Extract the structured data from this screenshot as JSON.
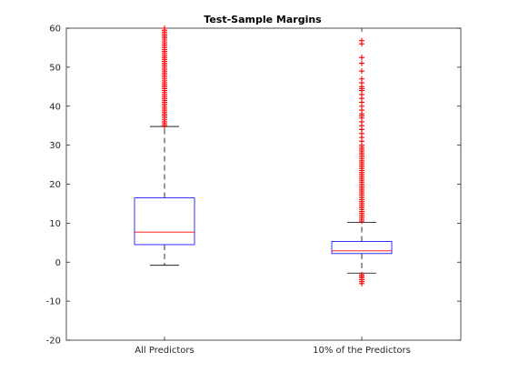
{
  "chart_data": {
    "type": "box",
    "title": "Test-Sample Margins",
    "xlabel": "",
    "ylabel": "",
    "ylim": [
      -20,
      60
    ],
    "yticks": [
      -20,
      -10,
      0,
      10,
      20,
      30,
      40,
      50,
      60
    ],
    "grid": false,
    "categories": [
      "All Predictors",
      "10% of the Predictors"
    ],
    "boxes": [
      {
        "category": "All Predictors",
        "whisker_low": -0.8,
        "q1": 4.5,
        "median": 7.7,
        "q3": 16.5,
        "whisker_high": 34.8,
        "outliers_low": [],
        "outliers_high": [
          35,
          35.5,
          36,
          36.5,
          37,
          37.5,
          38,
          38.5,
          39,
          39.5,
          40,
          40.5,
          41,
          41.5,
          42,
          42.5,
          43,
          43.5,
          44,
          44.5,
          45,
          45.5,
          46,
          46.5,
          47,
          47.5,
          48,
          48.5,
          49,
          49.5,
          50,
          50.5,
          51,
          51.5,
          52,
          52.5,
          53,
          53.5,
          54,
          54.5,
          55,
          55.5,
          56,
          56.5,
          57,
          57.5,
          58,
          58.5,
          59,
          59.5,
          60
        ]
      },
      {
        "category": "10% of the Predictors",
        "whisker_low": -2.8,
        "q1": 2.2,
        "median": 2.9,
        "q3": 5.3,
        "whisker_high": 10.2,
        "outliers_low": [
          -3.2,
          -3.6,
          -4.0,
          -4.5,
          -5.0,
          -5.5
        ],
        "outliers_high": [
          10.5,
          11,
          11.5,
          12,
          12.5,
          13,
          13.5,
          14,
          14.5,
          15,
          15.5,
          16,
          16.5,
          17,
          17.5,
          18,
          18.5,
          19,
          19.5,
          20,
          20.5,
          21,
          21.5,
          22,
          22.5,
          23,
          23.5,
          24,
          24.5,
          25,
          25.5,
          26,
          26.5,
          27,
          27.5,
          28,
          28.5,
          29,
          29.5,
          30,
          31,
          32,
          33,
          34,
          35,
          36,
          37,
          37.5,
          38,
          39,
          40,
          41,
          42,
          43,
          44,
          44.5,
          45,
          46,
          47,
          49,
          51,
          52.5,
          56,
          56.8
        ]
      }
    ],
    "colors": {
      "box": "#0000ff",
      "median": "#ff0000",
      "whisker": "#000000",
      "outlier": "#ff0000",
      "axis": "#262626"
    }
  }
}
